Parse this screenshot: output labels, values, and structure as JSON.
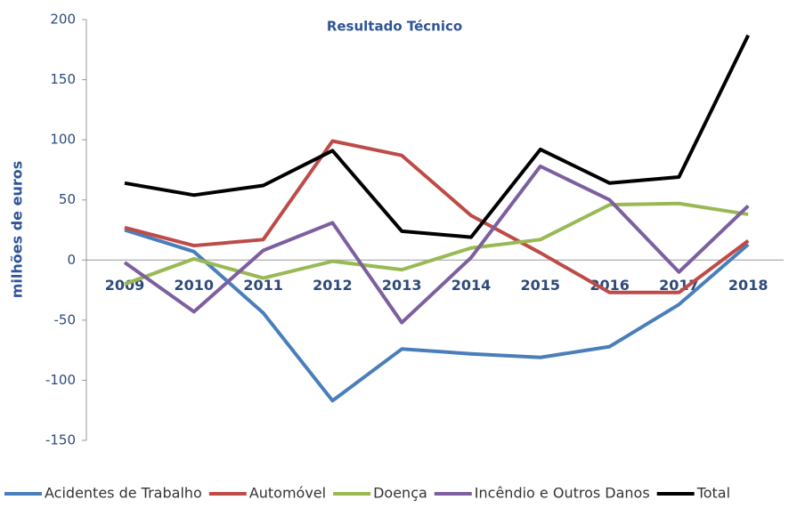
{
  "chart_data": {
    "type": "line",
    "title": "Resultado Técnico",
    "y_label": "milhões de euros",
    "categories": [
      "2009",
      "2010",
      "2011",
      "2012",
      "2013",
      "2014",
      "2015",
      "2016",
      "2017",
      "2018"
    ],
    "series": [
      {
        "name": "Acidentes de Trabalho",
        "color": "#4a7ebb",
        "values": [
          25,
          7,
          -44,
          -117,
          -74,
          -78,
          -81,
          -72,
          -37,
          13
        ]
      },
      {
        "name": "Automóvel",
        "color": "#be4b48",
        "values": [
          27,
          12,
          17,
          99,
          87,
          37,
          6,
          -27,
          -27,
          16
        ]
      },
      {
        "name": "Doença",
        "color": "#98b954",
        "values": [
          -20,
          1,
          -15,
          -1,
          -8,
          10,
          17,
          46,
          47,
          38
        ]
      },
      {
        "name": "Incêndio e Outros Danos",
        "color": "#7d5fa0",
        "values": [
          -2,
          -43,
          8,
          31,
          -52,
          2,
          78,
          50,
          -10,
          45
        ]
      },
      {
        "name": "Total",
        "color": "#000000",
        "values": [
          64,
          54,
          62,
          91,
          24,
          19,
          92,
          64,
          69,
          187
        ]
      }
    ],
    "ylim": [
      -150,
      200
    ],
    "yticks": [
      -150,
      -100,
      -50,
      0,
      50,
      100,
      150,
      200
    ],
    "legend": "bottom"
  }
}
